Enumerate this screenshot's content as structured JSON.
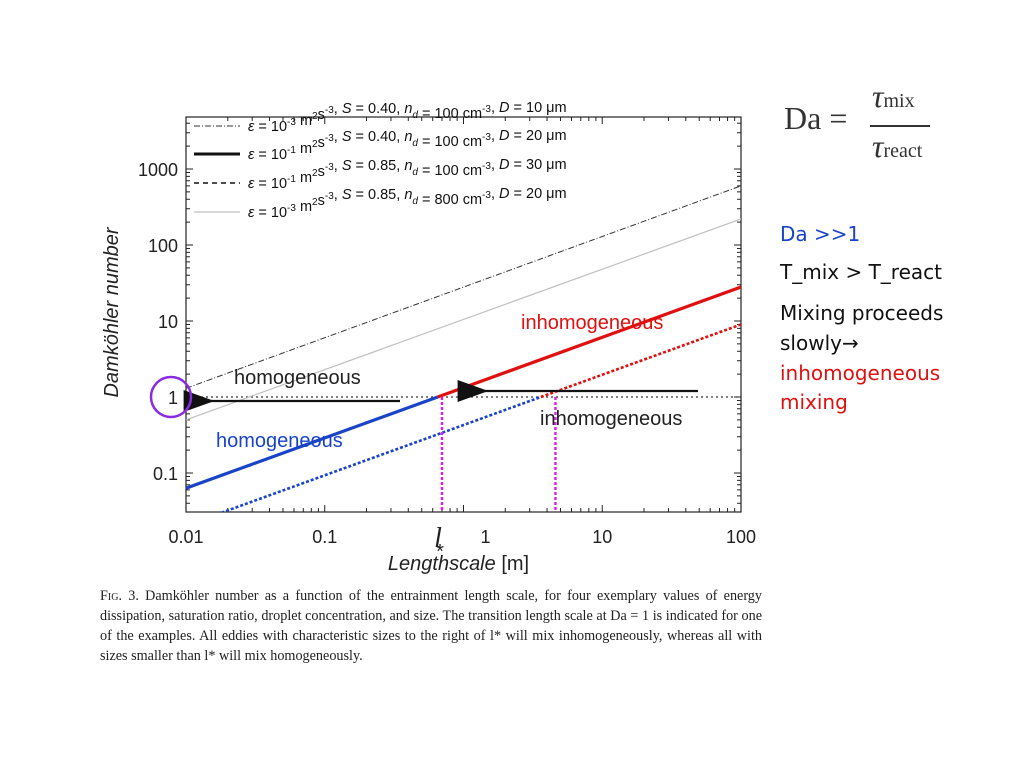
{
  "chart_data": {
    "type": "line",
    "title": "",
    "xlabel": "Lengthscale",
    "xlabel_unit": " [m]",
    "ylabel": "Damköhler number",
    "xscale": "log",
    "yscale": "log",
    "xlim": [
      0.01,
      100
    ],
    "ylim": [
      0.03,
      5000
    ],
    "x_ticks": [
      {
        "value": 0.01,
        "label": "0.01"
      },
      {
        "value": 0.1,
        "label": "0.1"
      },
      {
        "value": 1,
        "label": "1"
      },
      {
        "value": 10,
        "label": "10"
      },
      {
        "value": 100,
        "label": "100"
      }
    ],
    "y_ticks": [
      {
        "value": 0.1,
        "label": "0.1"
      },
      {
        "value": 1,
        "label": "1"
      },
      {
        "value": 10,
        "label": "10"
      },
      {
        "value": 100,
        "label": "100"
      },
      {
        "value": 1000,
        "label": "1000"
      }
    ],
    "legend_position": "top-left",
    "series": [
      {
        "legend": {
          "eps": "10",
          "eps_exp": "-3",
          "S": "0.40",
          "nd": "100",
          "D": "10"
        },
        "style": "dash-dot-thin",
        "color": "#333333",
        "x": [
          0.01,
          100
        ],
        "y": [
          1.3,
          600
        ]
      },
      {
        "legend": {
          "eps": "10",
          "eps_exp": "-1",
          "S": "0.40",
          "nd": "100",
          "D": "20"
        },
        "style": "solid-thick",
        "color": "#111111",
        "x": [
          0.01,
          100
        ],
        "y": [
          0.063,
          28
        ]
      },
      {
        "legend": {
          "eps": "10",
          "eps_exp": "-1",
          "S": "0.85",
          "nd": "100",
          "D": "30"
        },
        "style": "dashed",
        "color": "#111111",
        "x": [
          0.018,
          100
        ],
        "y": [
          0.03,
          9
        ]
      },
      {
        "legend": {
          "eps": "10",
          "eps_exp": "-3",
          "S": "0.85",
          "nd": "800",
          "D": "20"
        },
        "style": "solid-light",
        "color": "#c0c0c0",
        "x": [
          0.01,
          100
        ],
        "y": [
          0.5,
          220
        ]
      }
    ],
    "reference_line": {
      "y": 1,
      "style": "dotted"
    },
    "transition_markers": [
      {
        "x": 0.7,
        "label": "l",
        "label_sub": "*"
      },
      {
        "x": 4.6
      }
    ],
    "annotations": {
      "homogeneous_black": "homogeneous",
      "inhomogeneous_black": "inhomogeneous",
      "inhomogeneous_red": "inhomogeneous",
      "homogeneous_blue": "homogeneous"
    },
    "highlight_colors": {
      "blue": "#1a44c8",
      "red": "#e01010",
      "magenta": "#e020e0",
      "circle": "#8a2be2"
    }
  },
  "caption": {
    "lead": "Fig. 3.",
    "text": " Damköhler number as a function of the entrainment length scale, for four exemplary values of energy dissipation, saturation ratio, droplet concentration, and size. The transition length scale at Da = 1 is indicated for one of the examples. All eddies with characteristic sizes to the right of l* will mix inhomogeneously, whereas all with sizes smaller than l* will mix homogeneously."
  },
  "formula": {
    "lhs": "Da =",
    "num": "τ",
    "num_sub": "mix",
    "den": "τ",
    "den_sub": "react"
  },
  "side_notes": {
    "line1": "Da >>1",
    "line2": "T_mix > T_react",
    "line3a": "Mixing proceeds",
    "line3b": "slowly",
    "line3_arrow": "→",
    "line4": "inhomogeneous",
    "line5": "mixing"
  }
}
